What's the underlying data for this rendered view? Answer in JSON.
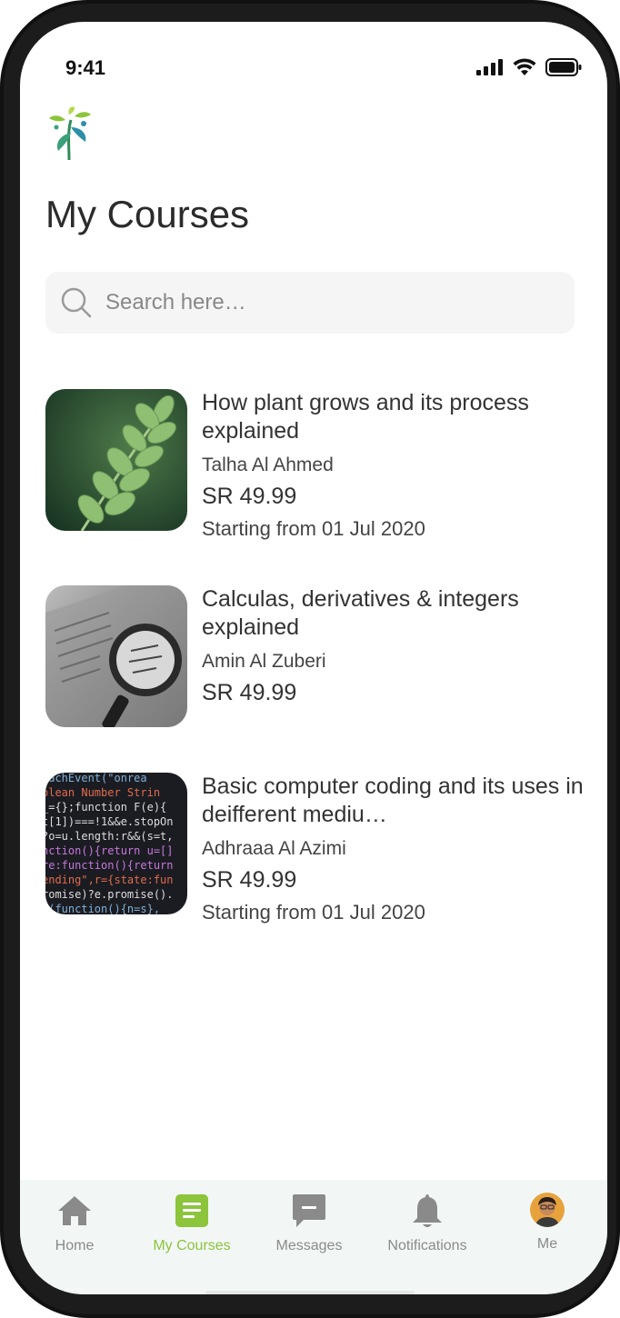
{
  "status_bar": {
    "time": "9:41"
  },
  "header": {
    "title": "My Courses"
  },
  "search": {
    "placeholder": "Search here…",
    "value": ""
  },
  "courses": [
    {
      "title": "How plant grows and its process explained",
      "author": "Talha Al Ahmed",
      "price": "SR 49.99",
      "date": "Starting from 01 Jul 2020"
    },
    {
      "title": "Calculas, derivatives & integers explained",
      "author": "Amin Al Zuberi",
      "price": "SR 49.99",
      "date": ""
    },
    {
      "title": "Basic computer coding and its uses in deifferent mediu…",
      "author": "Adhraaa Al Azimi",
      "price": "SR 49.99",
      "date": "Starting from 01 Jul 2020"
    }
  ],
  "tabbar": {
    "items": [
      {
        "label": "Home",
        "icon": "home-icon"
      },
      {
        "label": "My Courses",
        "icon": "courses-icon"
      },
      {
        "label": "Messages",
        "icon": "message-icon"
      },
      {
        "label": "Notifications",
        "icon": "bell-icon"
      },
      {
        "label": "Me",
        "icon": "avatar"
      }
    ],
    "active": "My Courses"
  },
  "colors": {
    "accent": "#8cc43c",
    "inactive": "#8a8a8a",
    "tabbar_bg": "#f2f7f5",
    "search_bg": "#f5f5f5"
  }
}
